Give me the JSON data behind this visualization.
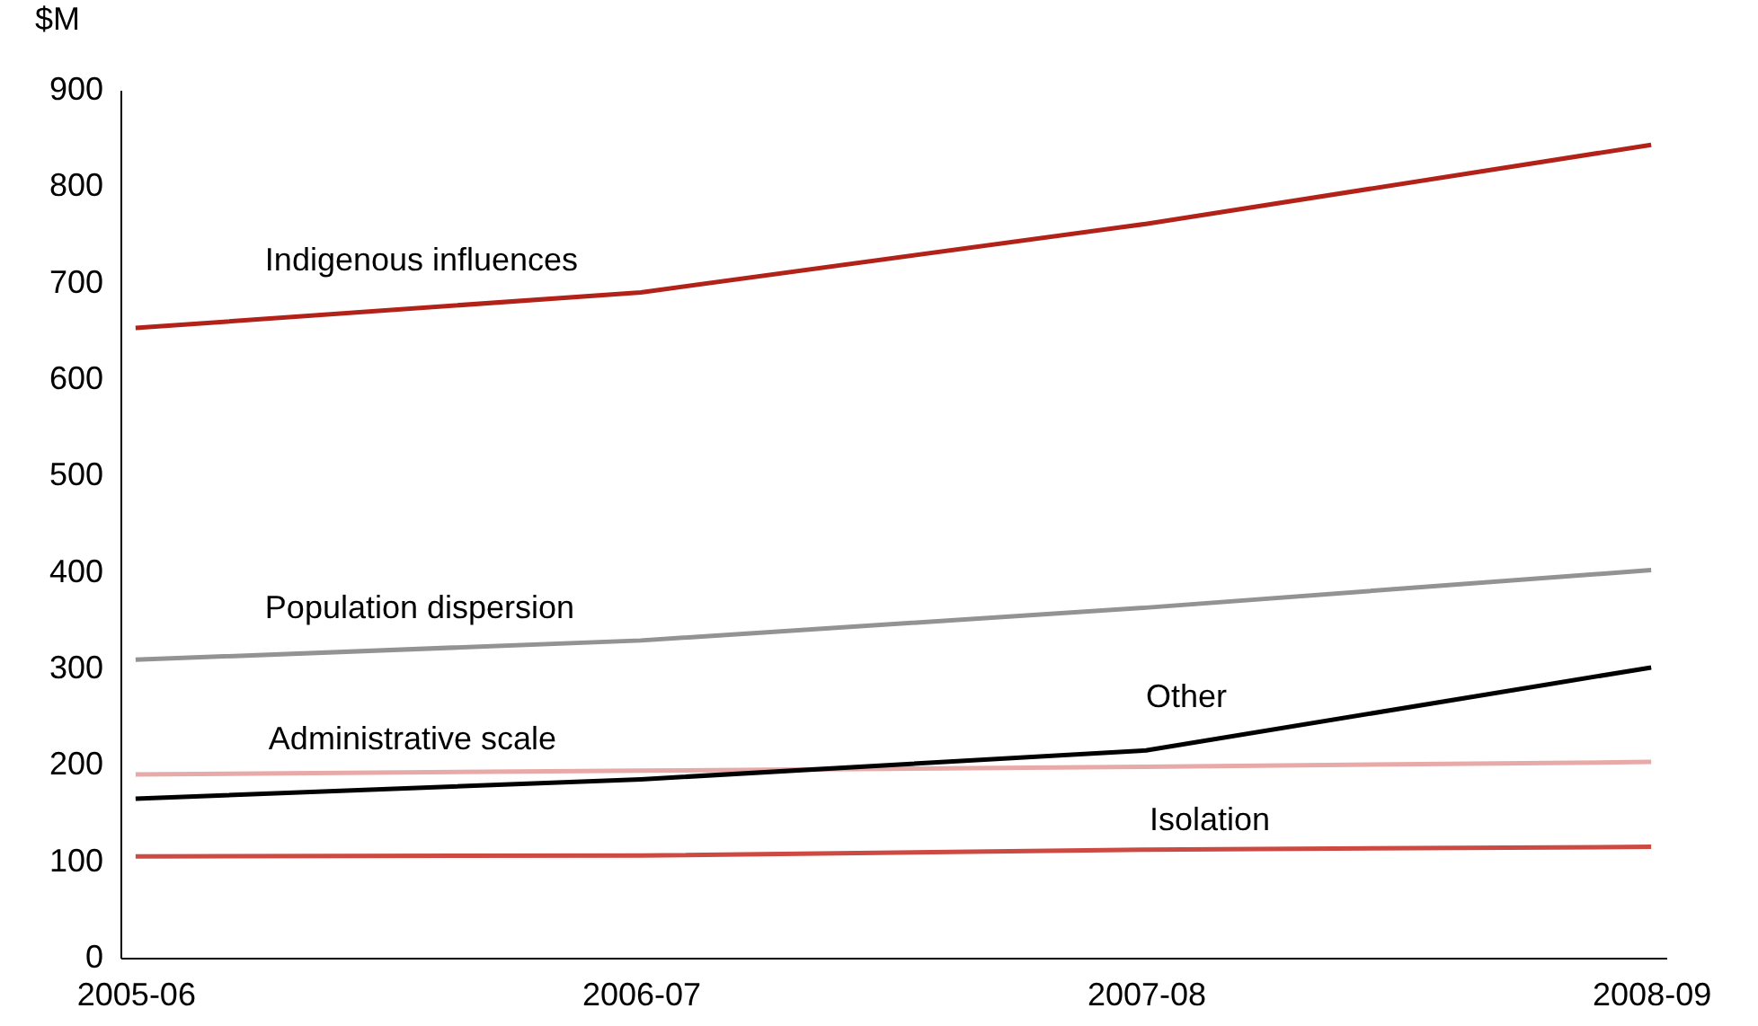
{
  "chart_data": {
    "type": "line",
    "ylabel": "$M",
    "categories": [
      "2005-06",
      "2006-07",
      "2007-08",
      "2008-09"
    ],
    "ylim": [
      0,
      900
    ],
    "yticks": [
      0,
      100,
      200,
      300,
      400,
      500,
      600,
      700,
      800,
      900
    ],
    "grid": false,
    "legend": false,
    "marker": "none",
    "line_style": "solid",
    "series": [
      {
        "name": "Indigenous influences",
        "color": "#b22218",
        "values": [
          653,
          690,
          761,
          843
        ]
      },
      {
        "name": "Population dispersion",
        "color": "#939393",
        "values": [
          309,
          329,
          363,
          402
        ]
      },
      {
        "name": "Administrative scale",
        "color": "#e8aaa8",
        "values": [
          190,
          194,
          198,
          203
        ]
      },
      {
        "name": "Other",
        "color": "#000000",
        "values": [
          165,
          185,
          215,
          301
        ]
      },
      {
        "name": "Isolation",
        "color": "#cc4a42",
        "values": [
          105,
          106,
          112,
          115
        ]
      }
    ]
  }
}
